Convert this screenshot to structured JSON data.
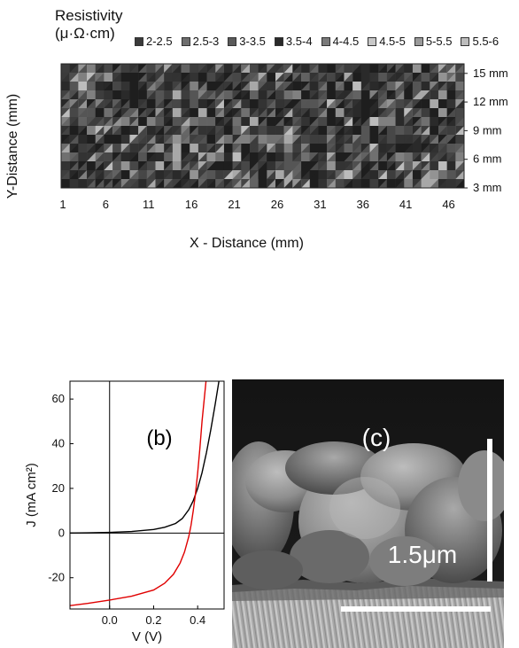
{
  "chart_data": [
    {
      "type": "heatmap",
      "legend_title": [
        "Resistivity",
        "(μ·Ω·cm)"
      ],
      "legend_placement": "top",
      "legend": [
        {
          "label": "2-2.5",
          "color": "#3a3a3a"
        },
        {
          "label": "2.5-3",
          "color": "#6e6e6e"
        },
        {
          "label": "3-3.5",
          "color": "#5a5a5a"
        },
        {
          "label": "3.5-4",
          "color": "#2a2a2a"
        },
        {
          "label": "4-4.5",
          "color": "#7a7a7a"
        },
        {
          "label": "4.5-5",
          "color": "#c8c8c8"
        },
        {
          "label": "5-5.5",
          "color": "#9a9a9a"
        },
        {
          "label": "5.5-6",
          "color": "#bdbdbd"
        }
      ],
      "xlabel": "X -  Distance (mm)",
      "ylabel": "Y-Distance (mm)",
      "x_ticks": [
        "1",
        "6",
        "11",
        "16",
        "21",
        "26",
        "31",
        "36",
        "41",
        "46"
      ],
      "y_ticks": [
        "15 mm",
        "12 mm",
        "9 mm",
        "6 mm",
        "3 mm"
      ],
      "xlim": [
        1,
        48
      ],
      "ylim": [
        3,
        16
      ]
    },
    {
      "type": "line",
      "panel_label": "(b)",
      "xlabel": "V (V)",
      "ylabel": "J (mA cm²)",
      "x_ticks": [
        "0.0",
        "0.2",
        "0.4"
      ],
      "y_ticks": [
        "60",
        "40",
        "20",
        "0",
        "-20"
      ],
      "xlim": [
        -0.18,
        0.52
      ],
      "ylim": [
        -34,
        68
      ],
      "series": [
        {
          "color": "#000000",
          "x": [
            -0.18,
            -0.1,
            0.0,
            0.1,
            0.2,
            0.25,
            0.3,
            0.33,
            0.36,
            0.38,
            0.4,
            0.42,
            0.44,
            0.46,
            0.48,
            0.5
          ],
          "y": [
            0.0,
            0.1,
            0.3,
            0.7,
            1.6,
            2.6,
            4.3,
            6.5,
            10.5,
            14.5,
            20.0,
            27.0,
            36.0,
            46.5,
            58.0,
            70.0
          ]
        },
        {
          "color": "#e00000",
          "x": [
            -0.18,
            -0.1,
            0.0,
            0.1,
            0.2,
            0.25,
            0.29,
            0.32,
            0.34,
            0.36,
            0.37,
            0.38,
            0.39,
            0.4,
            0.41,
            0.42,
            0.43,
            0.44
          ],
          "y": [
            -32.5,
            -31.5,
            -30.0,
            -28.3,
            -25.5,
            -22.5,
            -18.5,
            -13.5,
            -8.5,
            -1.5,
            3.5,
            10.0,
            17.5,
            27.0,
            38.0,
            50.0,
            60.0,
            70.0
          ]
        }
      ]
    }
  ],
  "micrograph": {
    "panel_label": "(c)",
    "scale_label": "1.5μm"
  }
}
